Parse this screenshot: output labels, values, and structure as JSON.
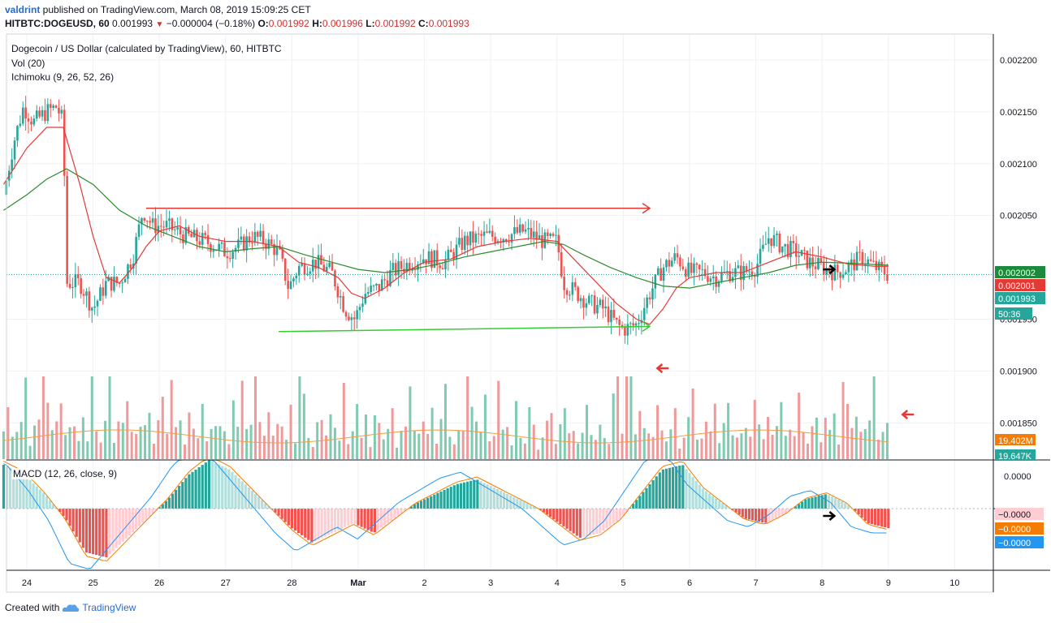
{
  "header": {
    "user": "valdrint",
    "published_text": " published on TradingView.com, March 08, 2019 15:09:25 CET",
    "symbol": "HITBTC:DOGEUSD, 60",
    "last": "0.001993",
    "change": "−0.000004 (−0.18%)",
    "o_label": "O:",
    "o_value": "0.001992",
    "h_label": "H:",
    "h_value": "0.001996",
    "l_label": "L:",
    "l_value": "0.001992",
    "c_label": "C:",
    "c_value": "0.001993"
  },
  "legend": {
    "main": "Dogecoin / US Dollar (calculated by TradingView), 60, HITBTC",
    "vol": "Vol (20)",
    "ichimoku": "Ichimoku (9, 26, 52, 26)",
    "macd": "MACD (12, 26, close, 9)"
  },
  "footer": {
    "created_with": "Created with",
    "brand": "TradingView"
  },
  "chart_data": {
    "type": "candlestick",
    "price_axis": {
      "ticks": [
        "0.002200",
        "0.002150",
        "0.002100",
        "0.002050",
        "0.001950",
        "0.001900",
        "0.001850"
      ],
      "range": [
        0.001815,
        0.002225
      ]
    },
    "time_axis": {
      "ticks": [
        "24",
        "25",
        "26",
        "27",
        "28",
        "Mar",
        "2",
        "3",
        "4",
        "5",
        "6",
        "7",
        "8",
        "9",
        "10"
      ]
    },
    "price_labels": [
      {
        "text": "0.002002",
        "color": "#1b8a3a",
        "value": 0.002002
      },
      {
        "text": "0.002001",
        "color": "#e53935",
        "value": 0.002001
      },
      {
        "text": "0.001993",
        "color": "#26a69a",
        "value": 0.001993
      },
      {
        "text": "50:36",
        "color": "#26a69a",
        "value": 0.00197
      }
    ],
    "volume_labels": [
      {
        "text": "19.402M",
        "color": "#f57c00"
      },
      {
        "text": "19.647K",
        "color": "#26a69a"
      }
    ],
    "macd_labels": [
      {
        "text": "0.0000"
      },
      {
        "text": "−0.0000",
        "color": "#ffcdd2",
        "text_color": "#131722"
      },
      {
        "text": "−0.0000",
        "color": "#f57c00",
        "text_color": "#ffffff"
      },
      {
        "text": "−0.0000",
        "color": "#2196f3",
        "text_color": "#ffffff"
      }
    ],
    "price_path": [
      [
        23.65,
        0.00207
      ],
      [
        23.8,
        0.00212
      ],
      [
        23.95,
        0.002155
      ],
      [
        24.1,
        0.00214
      ],
      [
        24.3,
        0.00215
      ],
      [
        24.45,
        0.002155
      ],
      [
        24.55,
        0.00214
      ],
      [
        24.6,
        0.001985
      ],
      [
        24.8,
        0.001985
      ],
      [
        25.0,
        0.00196
      ],
      [
        25.2,
        0.001985
      ],
      [
        25.4,
        0.001985
      ],
      [
        25.6,
        0.00201
      ],
      [
        25.75,
        0.002055
      ],
      [
        25.9,
        0.00204
      ],
      [
        26.1,
        0.00204
      ],
      [
        26.4,
        0.00203
      ],
      [
        26.7,
        0.002025
      ],
      [
        27.0,
        0.002015
      ],
      [
        27.2,
        0.00202
      ],
      [
        27.4,
        0.00203
      ],
      [
        27.6,
        0.002025
      ],
      [
        27.8,
        0.002015
      ],
      [
        27.95,
        0.00198
      ],
      [
        28.1,
        0.002
      ],
      [
        28.35,
        0.002005
      ],
      [
        28.6,
        0.001995
      ],
      [
        28.8,
        0.00196
      ],
      [
        28.95,
        0.00195
      ],
      [
        29.1,
        0.001975
      ],
      [
        29.3,
        0.00198
      ],
      [
        29.5,
        0.001995
      ],
      [
        29.8,
        0.002005
      ],
      [
        30.0,
        0.00201
      ],
      [
        30.3,
        0.002005
      ],
      [
        30.6,
        0.002025
      ],
      [
        30.9,
        0.00203
      ],
      [
        31.2,
        0.00203
      ],
      [
        31.5,
        0.002035
      ],
      [
        31.8,
        0.002025
      ],
      [
        32.0,
        0.002025
      ],
      [
        32.1,
        0.001985
      ],
      [
        32.3,
        0.001975
      ],
      [
        32.5,
        0.001965
      ],
      [
        32.7,
        0.00196
      ],
      [
        32.9,
        0.001945
      ],
      [
        33.0,
        0.00194
      ],
      [
        33.2,
        0.001945
      ],
      [
        33.4,
        0.001975
      ],
      [
        33.6,
        0.002
      ],
      [
        33.8,
        0.00201
      ],
      [
        34.0,
        0.001995
      ],
      [
        34.2,
        0.001995
      ],
      [
        34.4,
        0.00199
      ],
      [
        34.6,
        0.001995
      ],
      [
        34.8,
        0.001995
      ],
      [
        35.0,
        0.002
      ],
      [
        35.1,
        0.002015
      ],
      [
        35.2,
        0.00203
      ],
      [
        35.4,
        0.00202
      ],
      [
        35.6,
        0.002015
      ],
      [
        35.8,
        0.002005
      ],
      [
        36.0,
        0.002
      ],
      [
        36.2,
        0.001995
      ],
      [
        36.4,
        0.002
      ],
      [
        36.6,
        0.00201
      ],
      [
        36.8,
        0.002
      ],
      [
        36.95,
        0.001995
      ],
      [
        37.0,
        0.001993
      ]
    ],
    "sma_fast": [
      [
        23.65,
        0.00208
      ],
      [
        24.0,
        0.002115
      ],
      [
        24.3,
        0.002135
      ],
      [
        24.55,
        0.002135
      ],
      [
        24.8,
        0.00208
      ],
      [
        25.0,
        0.00203
      ],
      [
        25.2,
        0.00199
      ],
      [
        25.4,
        0.001985
      ],
      [
        25.6,
        0.002
      ],
      [
        25.8,
        0.00202
      ],
      [
        26.0,
        0.002035
      ],
      [
        26.3,
        0.00204
      ],
      [
        26.6,
        0.00203
      ],
      [
        27.0,
        0.002025
      ],
      [
        27.4,
        0.002025
      ],
      [
        27.8,
        0.00202
      ],
      [
        28.1,
        0.002005
      ],
      [
        28.4,
        0.002
      ],
      [
        28.7,
        0.00199
      ],
      [
        28.9,
        0.001975
      ],
      [
        29.1,
        0.00197
      ],
      [
        29.4,
        0.00198
      ],
      [
        29.7,
        0.001995
      ],
      [
        30.0,
        0.002005
      ],
      [
        30.4,
        0.002008
      ],
      [
        30.8,
        0.00202
      ],
      [
        31.2,
        0.002025
      ],
      [
        31.6,
        0.002028
      ],
      [
        32.0,
        0.002025
      ],
      [
        32.3,
        0.002005
      ],
      [
        32.6,
        0.001985
      ],
      [
        32.9,
        0.001965
      ],
      [
        33.2,
        0.00195
      ],
      [
        33.4,
        0.001945
      ],
      [
        33.6,
        0.00196
      ],
      [
        33.8,
        0.00198
      ],
      [
        34.0,
        0.00199
      ],
      [
        34.4,
        0.001995
      ],
      [
        34.8,
        0.001995
      ],
      [
        35.2,
        0.002005
      ],
      [
        35.6,
        0.002015
      ],
      [
        36.0,
        0.00201
      ],
      [
        36.4,
        0.002003
      ],
      [
        36.8,
        0.002001
      ],
      [
        37.0,
        0.002001
      ]
    ],
    "sma_slow": [
      [
        23.65,
        0.002055
      ],
      [
        24.0,
        0.00207
      ],
      [
        24.3,
        0.002085
      ],
      [
        24.6,
        0.002095
      ],
      [
        25.0,
        0.00208
      ],
      [
        25.4,
        0.002055
      ],
      [
        25.8,
        0.00204
      ],
      [
        26.2,
        0.00203
      ],
      [
        26.6,
        0.00202
      ],
      [
        27.0,
        0.002015
      ],
      [
        27.4,
        0.002018
      ],
      [
        27.8,
        0.00202
      ],
      [
        28.2,
        0.002012
      ],
      [
        28.6,
        0.002005
      ],
      [
        29.0,
        0.001998
      ],
      [
        29.4,
        0.001995
      ],
      [
        29.8,
        0.001998
      ],
      [
        30.2,
        0.002003
      ],
      [
        30.6,
        0.00201
      ],
      [
        31.0,
        0.002015
      ],
      [
        31.4,
        0.00202
      ],
      [
        31.8,
        0.002025
      ],
      [
        32.1,
        0.002022
      ],
      [
        32.4,
        0.002012
      ],
      [
        32.8,
        0.002
      ],
      [
        33.2,
        0.00199
      ],
      [
        33.6,
        0.001982
      ],
      [
        34.0,
        0.00198
      ],
      [
        34.4,
        0.001985
      ],
      [
        34.8,
        0.00199
      ],
      [
        35.2,
        0.001995
      ],
      [
        35.6,
        0.002002
      ],
      [
        36.0,
        0.002005
      ],
      [
        36.4,
        0.002004
      ],
      [
        37.0,
        0.002002
      ]
    ],
    "resistance_line": {
      "x1": 25.8,
      "x2": 33.4,
      "y": 0.002057,
      "color": "#e53935"
    },
    "support_line": {
      "x1": 27.8,
      "x2": 33.4,
      "y1": 0.001938,
      "y2": 0.001943,
      "color": "#33cc33"
    },
    "volume_pattern": [
      0.4,
      0.6,
      0.3,
      0.5,
      0.8,
      0.35,
      0.25,
      0.55,
      0.45,
      0.3,
      0.7,
      0.5,
      0.4,
      0.9,
      0.3,
      0.45,
      0.6,
      0.35,
      0.5,
      0.25,
      0.75,
      0.4,
      0.3,
      0.55,
      0.65,
      0.2,
      0.45,
      0.5,
      0.85,
      0.3,
      0.4,
      0.6
    ],
    "macd_pattern": [
      0.9,
      0.7,
      0.3,
      -0.2,
      -0.9,
      -1.0,
      -0.6,
      -0.2,
      0.2,
      0.7,
      1.0,
      0.8,
      0.4,
      0.0,
      -0.4,
      -0.7,
      -0.5,
      -0.3,
      -0.5,
      -0.2,
      0.1,
      0.3,
      0.5,
      0.6,
      0.4,
      0.2,
      0.0,
      -0.3,
      -0.6,
      -0.5,
      -0.2,
      0.3,
      0.8,
      0.9,
      0.4,
      0.1,
      -0.2,
      -0.3,
      -0.1,
      0.2,
      0.3,
      0.1,
      -0.3,
      -0.4
    ],
    "arrows": [
      {
        "dir": "right",
        "color": "#000000",
        "x": 36.1,
        "y": 0.001998
      },
      {
        "dir": "left",
        "color": "#e53935",
        "panel": "volume",
        "x": 33.6
      },
      {
        "dir": "left",
        "color": "#e53935",
        "panel": "volume",
        "x": 37.3
      },
      {
        "dir": "right",
        "color": "#000000",
        "panel": "macd",
        "x": 36.1
      }
    ]
  }
}
